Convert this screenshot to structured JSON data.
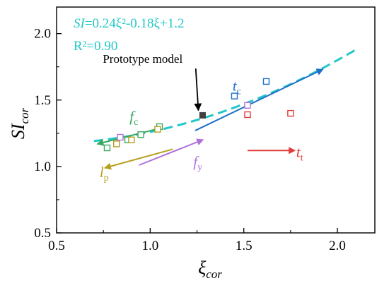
{
  "chart_data": {
    "type": "scatter",
    "xlabel": {
      "main": "ξ",
      "sub": "cor"
    },
    "ylabel": {
      "main": "SI",
      "sub": "cor"
    },
    "xlim": [
      0.5,
      2.2
    ],
    "ylim": [
      0.5,
      2.2
    ],
    "x_ticks": [
      0.5,
      1.0,
      1.5,
      2.0
    ],
    "x_tick_labels": [
      "0.5",
      "1.0",
      "1.5",
      "2.0"
    ],
    "y_ticks": [
      0.5,
      1.0,
      1.5,
      2.0
    ],
    "y_tick_labels": [
      "0.5",
      "1.0",
      "1.5",
      "2.0"
    ],
    "grid": false,
    "legend": "none",
    "equation": {
      "prefix": "SI",
      "body": "=0.24ξ²-0.18ξ+1.2",
      "r2_label": "R²=0.90",
      "color": "#22c7c7"
    },
    "fit_curve": {
      "coeffs": [
        0.24,
        -0.18,
        1.2
      ],
      "x_range": [
        0.7,
        2.1
      ],
      "color": "#22c7c7"
    },
    "prototype": {
      "label": "Prototype model",
      "point": {
        "x": 1.28,
        "y": 1.385
      },
      "label_pos": {
        "x": 0.96,
        "y": 1.78
      },
      "color": "#404040"
    },
    "series": [
      {
        "label": "f",
        "sub": "c",
        "color": "#3aa860",
        "points": [
          [
            0.77,
            1.14
          ],
          [
            0.82,
            1.18
          ],
          [
            0.88,
            1.2
          ],
          [
            0.95,
            1.24
          ],
          [
            1.05,
            1.3
          ]
        ],
        "arrow_from": [
          1.03,
          1.28
        ],
        "arrow_to": [
          0.72,
          1.17
        ],
        "label_pos": [
          0.89,
          1.34
        ]
      },
      {
        "label": "l",
        "sub": "p",
        "color": "#b5a020",
        "points": [
          [
            0.82,
            1.17
          ],
          [
            0.9,
            1.2
          ],
          [
            1.04,
            1.28
          ]
        ],
        "arrow_from": [
          1.12,
          1.13
        ],
        "arrow_to": [
          0.76,
          0.99
        ],
        "label_pos": [
          0.73,
          0.92
        ]
      },
      {
        "label": "f",
        "sub": "y",
        "color": "#b070dc",
        "points": [
          [
            0.84,
            1.22
          ],
          [
            1.52,
            1.46
          ]
        ],
        "arrow_from": [
          0.94,
          1.01
        ],
        "arrow_to": [
          1.28,
          1.2
        ],
        "label_pos": [
          1.23,
          1.0
        ]
      },
      {
        "label": "t",
        "sub": "t",
        "color": "#e03c3c",
        "points": [
          [
            1.52,
            1.39
          ],
          [
            1.75,
            1.4
          ]
        ],
        "arrow_from": [
          1.52,
          1.12
        ],
        "arrow_to": [
          1.77,
          1.12
        ],
        "label_pos": [
          1.78,
          1.07
        ]
      },
      {
        "label": "t",
        "sub": "c",
        "color": "#2070c8",
        "points": [
          [
            1.45,
            1.53
          ],
          [
            1.62,
            1.64
          ]
        ],
        "arrow_from": [
          1.24,
          1.27
        ],
        "arrow_to": [
          1.92,
          1.73
        ],
        "label_pos": [
          1.44,
          1.57
        ]
      }
    ]
  }
}
